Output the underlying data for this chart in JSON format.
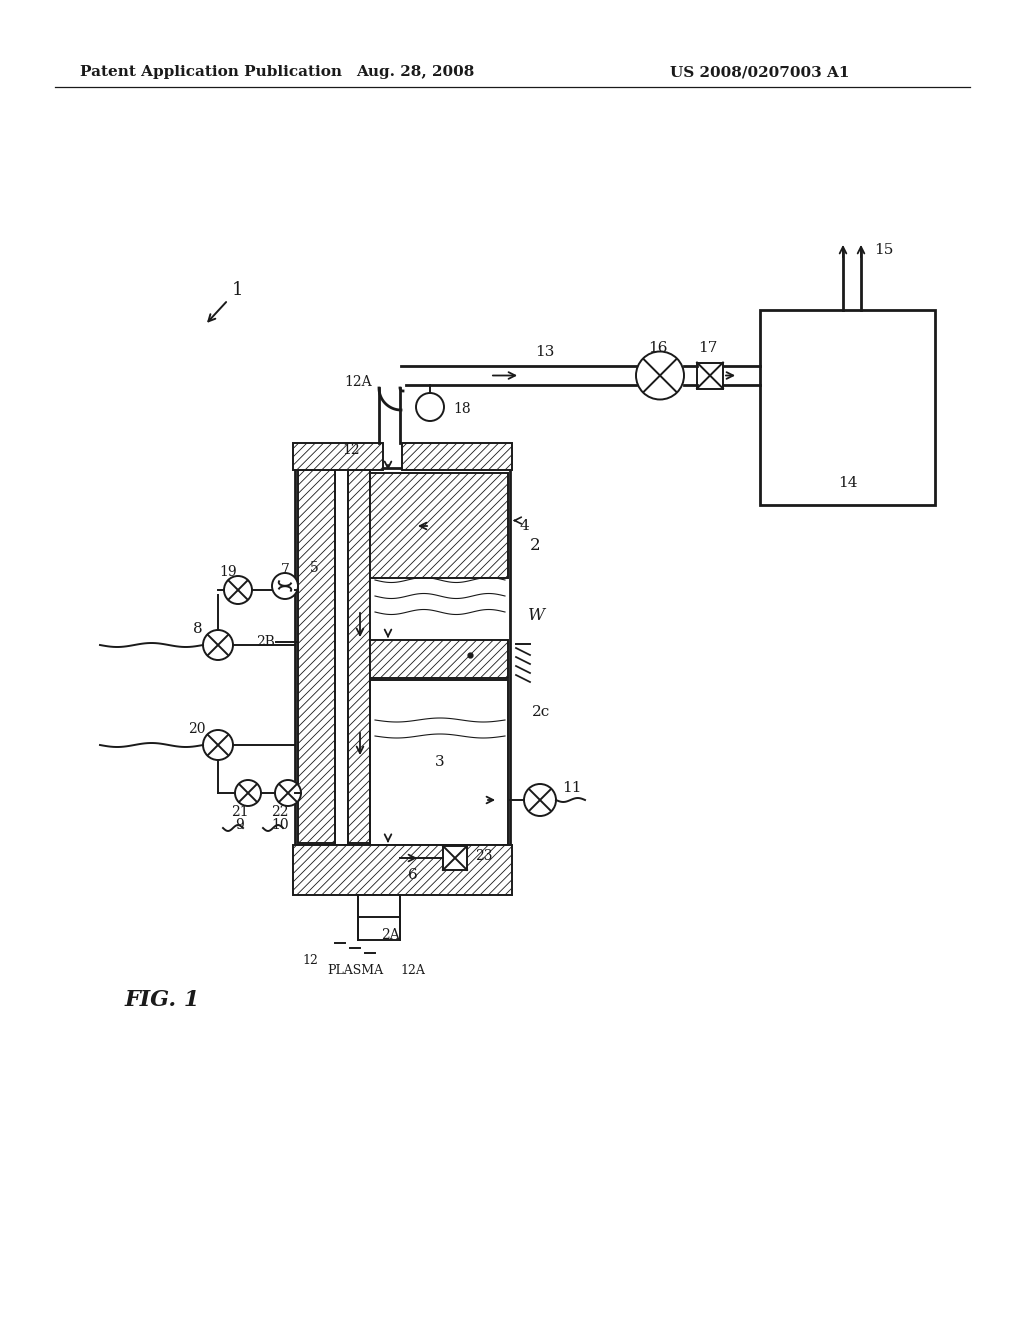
{
  "bg_color": "#ffffff",
  "line_color": "#1a1a1a",
  "header_left": "Patent Application Publication",
  "header_center": "Aug. 28, 2008",
  "header_right": "US 2008/0207003 A1",
  "fig_label": "FIG. 1",
  "lw": 1.4,
  "tlw": 2.0,
  "hatch_lw": 0.6
}
